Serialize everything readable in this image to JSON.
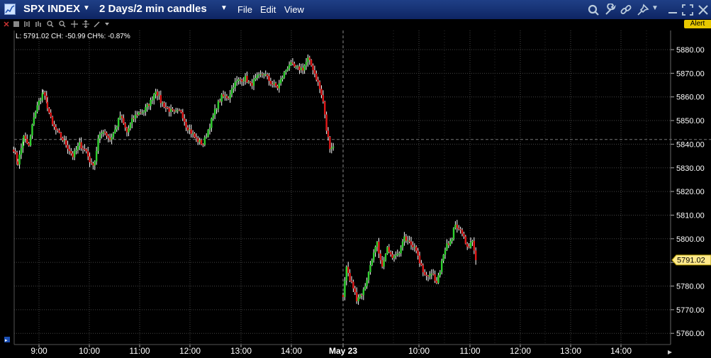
{
  "window": {
    "symbol": "SPX INDEX",
    "timeframe": "2 Days/2 min candles",
    "menu": [
      "File",
      "Edit",
      "View"
    ]
  },
  "toolbar": {
    "alert_label": "Alert"
  },
  "readout": {
    "text": "L: 5791.02 CH: -50.99 CH%: -0.87%"
  },
  "colors": {
    "up": "#2fd12f",
    "down": "#e01818",
    "wick": "#ffffff",
    "grid": "#444444",
    "axis_text": "#ffffff",
    "price_box": "#ffe98a",
    "titlebar": "#16327a"
  },
  "chart_data": {
    "type": "candlestick",
    "title": "",
    "ylabel": "",
    "xlabel": "",
    "ylim": [
      5756,
      5885
    ],
    "y_ticks": [
      5760,
      5770,
      5780,
      5790,
      5800,
      5810,
      5820,
      5830,
      5840,
      5850,
      5860,
      5870,
      5880
    ],
    "x_ticks": [
      "9:00",
      "10:00",
      "11:00",
      "12:00",
      "13:00",
      "14:00",
      "May 23",
      "10:00",
      "11:00",
      "12:00",
      "13:00",
      "14:00"
    ],
    "session_break_label": "May 23",
    "previous_close": 5842.01,
    "last_price": 5791.02,
    "last_price_label": "5791.02",
    "day1": {
      "start_time": "08:30",
      "interval_min": 2,
      "anchor_closes": [
        [
          "08:30",
          5838
        ],
        [
          "08:35",
          5832
        ],
        [
          "08:42",
          5843
        ],
        [
          "08:48",
          5839
        ],
        [
          "08:54",
          5852
        ],
        [
          "09:00",
          5858
        ],
        [
          "09:05",
          5862
        ],
        [
          "09:10",
          5856
        ],
        [
          "09:16",
          5848
        ],
        [
          "09:24",
          5844
        ],
        [
          "09:32",
          5840
        ],
        [
          "09:40",
          5835
        ],
        [
          "09:48",
          5840
        ],
        [
          "09:56",
          5837
        ],
        [
          "10:02",
          5831
        ],
        [
          "10:06",
          5833
        ],
        [
          "10:10",
          5842
        ],
        [
          "10:16",
          5846
        ],
        [
          "10:24",
          5842
        ],
        [
          "10:30",
          5846
        ],
        [
          "10:36",
          5852
        ],
        [
          "10:44",
          5845
        ],
        [
          "10:50",
          5850
        ],
        [
          "10:56",
          5853
        ],
        [
          "11:04",
          5854
        ],
        [
          "11:12",
          5858
        ],
        [
          "11:18",
          5863
        ],
        [
          "11:24",
          5858
        ],
        [
          "11:32",
          5855
        ],
        [
          "11:40",
          5853
        ],
        [
          "11:48",
          5854
        ],
        [
          "11:54",
          5848
        ],
        [
          "12:00",
          5845
        ],
        [
          "12:06",
          5842
        ],
        [
          "12:14",
          5840
        ],
        [
          "12:22",
          5848
        ],
        [
          "12:30",
          5856
        ],
        [
          "12:36",
          5860
        ],
        [
          "12:44",
          5860
        ],
        [
          "12:50",
          5865
        ],
        [
          "12:56",
          5867
        ],
        [
          "13:04",
          5868
        ],
        [
          "13:10",
          5865
        ],
        [
          "13:18",
          5868
        ],
        [
          "13:26",
          5870
        ],
        [
          "13:34",
          5866
        ],
        [
          "13:42",
          5864
        ],
        [
          "13:50",
          5870
        ],
        [
          "13:56",
          5874
        ],
        [
          "14:04",
          5872
        ],
        [
          "14:12",
          5872
        ],
        [
          "14:18",
          5876
        ],
        [
          "14:24",
          5872
        ],
        [
          "14:30",
          5866
        ],
        [
          "14:36",
          5858
        ],
        [
          "14:40",
          5846
        ],
        [
          "14:44",
          5839
        ],
        [
          "14:48",
          5839
        ]
      ]
    },
    "day2": {
      "start_time": "08:30",
      "interval_min": 2,
      "anchor_closes": [
        [
          "08:30",
          5776
        ],
        [
          "08:34",
          5788
        ],
        [
          "08:40",
          5781
        ],
        [
          "08:46",
          5774
        ],
        [
          "08:52",
          5776
        ],
        [
          "08:58",
          5783
        ],
        [
          "09:04",
          5792
        ],
        [
          "09:10",
          5798
        ],
        [
          "09:16",
          5788
        ],
        [
          "09:22",
          5797
        ],
        [
          "09:28",
          5792
        ],
        [
          "09:36",
          5794
        ],
        [
          "09:42",
          5800
        ],
        [
          "09:50",
          5797
        ],
        [
          "09:56",
          5796
        ],
        [
          "10:02",
          5788
        ],
        [
          "10:08",
          5784
        ],
        [
          "10:14",
          5786
        ],
        [
          "10:20",
          5781
        ],
        [
          "10:26",
          5790
        ],
        [
          "10:32",
          5797
        ],
        [
          "10:38",
          5801
        ],
        [
          "10:42",
          5806
        ],
        [
          "10:48",
          5803
        ],
        [
          "10:54",
          5799
        ],
        [
          "10:58",
          5796
        ],
        [
          "11:02",
          5800
        ],
        [
          "11:06",
          5791
        ]
      ]
    }
  }
}
